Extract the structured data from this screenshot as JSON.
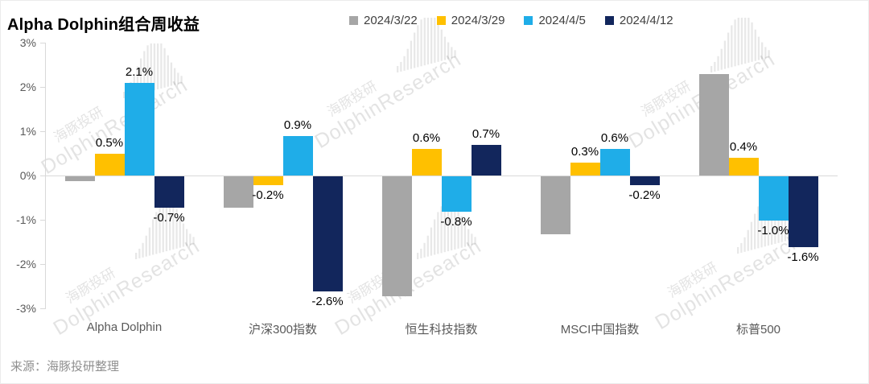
{
  "title": "Alpha Dolphin组合周收益",
  "source": "来源：海豚投研整理",
  "watermark": {
    "cn": "海豚投研",
    "en": "DolphinResearch"
  },
  "legend": [
    {
      "label": "2024/3/22",
      "color": "#a6a6a6"
    },
    {
      "label": "2024/3/29",
      "color": "#ffc000"
    },
    {
      "label": "2024/4/5",
      "color": "#1fade8"
    },
    {
      "label": "2024/4/12",
      "color": "#12265c"
    }
  ],
  "chart_data": {
    "type": "bar",
    "title": "Alpha Dolphin组合周收益",
    "categories": [
      "Alpha Dolphin",
      "沪深300指数",
      "恒生科技指数",
      "MSCI中国指数",
      "标普500"
    ],
    "series": [
      {
        "name": "2024/3/22",
        "color": "#a6a6a6",
        "values": [
          -0.1,
          -0.7,
          -2.7,
          -1.3,
          2.3
        ],
        "labels": [
          "",
          "",
          "",
          "",
          ""
        ]
      },
      {
        "name": "2024/3/29",
        "color": "#ffc000",
        "values": [
          0.5,
          -0.2,
          0.6,
          0.3,
          0.4
        ],
        "labels": [
          "0.5%",
          "-0.2%",
          "0.6%",
          "0.3%",
          "0.4%"
        ]
      },
      {
        "name": "2024/4/5",
        "color": "#1fade8",
        "values": [
          2.1,
          0.9,
          -0.8,
          0.6,
          -1.0
        ],
        "labels": [
          "2.1%",
          "0.9%",
          "-0.8%",
          "0.6%",
          "-1.0%"
        ]
      },
      {
        "name": "2024/4/12",
        "color": "#12265c",
        "values": [
          -0.7,
          -2.6,
          0.7,
          -0.2,
          -1.6
        ],
        "labels": [
          "-0.7%",
          "-2.6%",
          "0.7%",
          "-0.2%",
          "-1.6%"
        ]
      }
    ],
    "ylim": [
      -3,
      3
    ],
    "yticks": [
      "3%",
      "2%",
      "1%",
      "0%",
      "-1%",
      "-2%",
      "-3%"
    ],
    "ylabel": "",
    "xlabel": "",
    "grid": "zero-line-only",
    "legend_position": "top-right"
  }
}
